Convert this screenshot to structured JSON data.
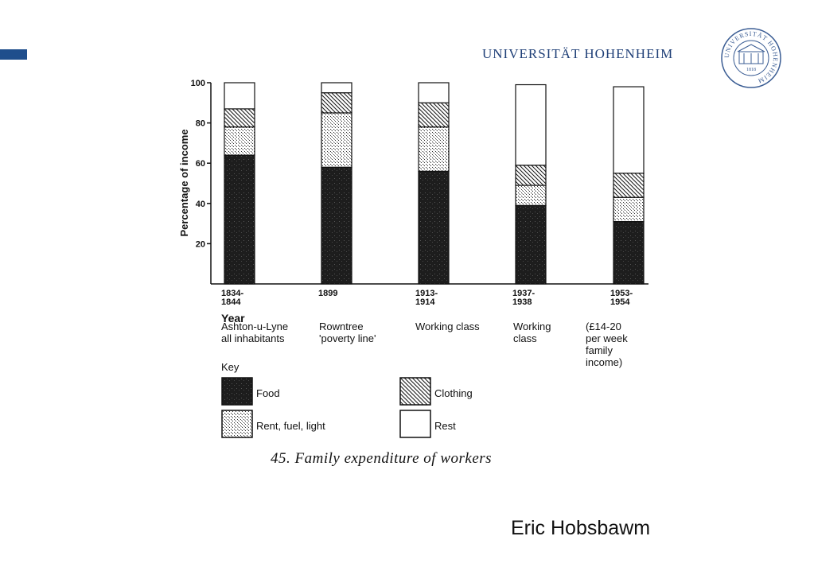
{
  "header": {
    "university": "UNIVERSITÄT HOHENHEIM",
    "seal_text": "UNIVERSITÄT HOHENHEIM",
    "seal_year": "1818",
    "accent_color": "#1f4e8c"
  },
  "chart_data": {
    "type": "bar",
    "stacked": true,
    "ylabel": "Percentage of income",
    "xlabel": "Year",
    "ylim": [
      0,
      100
    ],
    "yticks": [
      20,
      40,
      60,
      80,
      100
    ],
    "categories": [
      "1834-\n1844",
      "1899",
      "1913-\n1914",
      "1937-\n1938",
      "1953-\n1954"
    ],
    "subtitles": [
      "Ashton-u-Lyne\nall inhabitants",
      "Rowntree\n'poverty line'",
      "Working class",
      "Working\nclass",
      "(£14-20\nper week\nfamily\nincome)"
    ],
    "series": [
      {
        "name": "Food",
        "values": [
          64,
          58,
          56,
          39,
          31
        ]
      },
      {
        "name": "Rent, fuel, light",
        "values": [
          14,
          27,
          22,
          10,
          12
        ]
      },
      {
        "name": "Clothing",
        "values": [
          9,
          10,
          12,
          10,
          12
        ]
      },
      {
        "name": "Rest",
        "values": [
          13,
          5,
          10,
          40,
          43
        ]
      }
    ],
    "legend": {
      "title": "Key",
      "items": [
        "Food",
        "Clothing",
        "Rent, fuel, light",
        "Rest"
      ]
    },
    "caption": "45. Family expenditure of workers"
  },
  "footer": {
    "author": "Eric Hobsbawm"
  }
}
